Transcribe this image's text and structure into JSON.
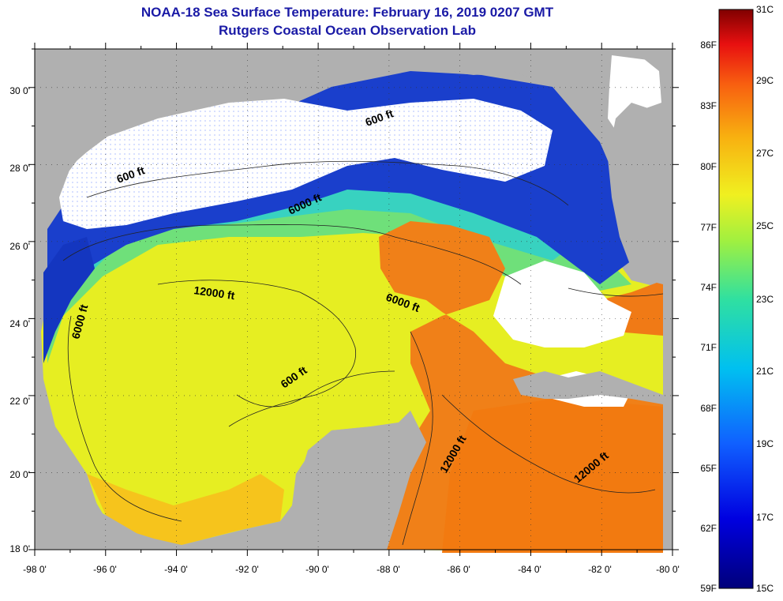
{
  "title": "NOAA-18 Sea Surface Temperature:  February 16, 2019 0207 GMT",
  "subtitle": "Rutgers Coastal Ocean Observation Lab",
  "map": {
    "lat_labels": [
      "30 0'",
      "28 0'",
      "26 0'",
      "24 0'",
      "22 0'",
      "20 0'",
      "18 0'"
    ],
    "lon_labels": [
      "-98 0'",
      "-96 0'",
      "-94 0'",
      "-92 0'",
      "-90 0'",
      "-88 0'",
      "-86 0'",
      "-84 0'",
      "-82 0'",
      "-80 0'"
    ],
    "lat_range": [
      18,
      31
    ],
    "lon_range": [
      -98,
      -80
    ],
    "contour_labels": [
      "600 ft",
      "600 ft",
      "6000 ft",
      "12000 ft",
      "6000 ft",
      "6000 ft",
      "600 ft",
      "12000 ft",
      "12000 ft"
    ],
    "colors": {
      "land": "#b0b0b0",
      "cloud": "#ffffff",
      "cold": "#1020b0",
      "cool": "#33ccdd",
      "warm": "#e8f020",
      "hot": "#f07010"
    }
  },
  "colorbar": {
    "fahrenheit_labels": [
      "86F",
      "83F",
      "80F",
      "77F",
      "74F",
      "71F",
      "68F",
      "65F",
      "62F",
      "59F"
    ],
    "celsius_labels": [
      "31C",
      "29C",
      "27C",
      "25C",
      "23C",
      "21C",
      "19C",
      "17C",
      "15C"
    ]
  }
}
